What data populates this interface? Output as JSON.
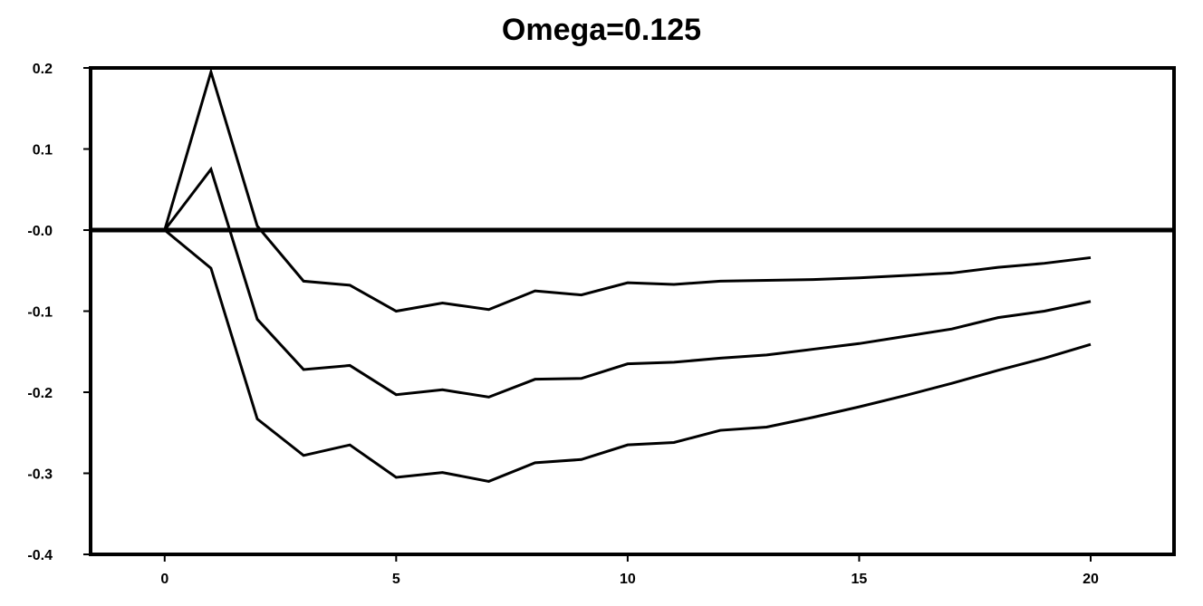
{
  "chart_data": {
    "type": "line",
    "title": "Omega=0.125",
    "xlabel": "",
    "ylabel": "",
    "xlim": [
      -1.6,
      21.8
    ],
    "ylim": [
      -0.4,
      0.2
    ],
    "x_ticks": [
      0,
      5,
      10,
      15,
      20
    ],
    "x_tick_labels": [
      "0",
      "5",
      "10",
      "15",
      "20"
    ],
    "y_ticks": [
      0.2,
      0.1,
      0.0,
      -0.1,
      -0.2,
      -0.3,
      -0.4
    ],
    "y_tick_labels": [
      "0.2",
      "0.1",
      "-0.0",
      "-0.1",
      "-0.2",
      "-0.3",
      "-0.4"
    ],
    "zero_line": true,
    "grid": false,
    "x": [
      0,
      1,
      2,
      3,
      4,
      5,
      6,
      7,
      8,
      9,
      10,
      11,
      12,
      13,
      14,
      15,
      16,
      17,
      18,
      19,
      20
    ],
    "series": [
      {
        "values": [
          0,
          0.195,
          0.005,
          -0.063,
          -0.068,
          -0.1,
          -0.09,
          -0.098,
          -0.075,
          -0.08,
          -0.065,
          -0.067,
          -0.063,
          -0.062,
          -0.061,
          -0.059,
          -0.056,
          -0.053,
          -0.046,
          -0.041,
          -0.034
        ]
      },
      {
        "values": [
          0,
          0.075,
          -0.11,
          -0.172,
          -0.167,
          -0.203,
          -0.197,
          -0.206,
          -0.184,
          -0.183,
          -0.165,
          -0.163,
          -0.158,
          -0.154,
          -0.147,
          -0.14,
          -0.131,
          -0.122,
          -0.108,
          -0.1,
          -0.088
        ]
      },
      {
        "values": [
          0,
          -0.047,
          -0.233,
          -0.278,
          -0.265,
          -0.305,
          -0.299,
          -0.31,
          -0.287,
          -0.283,
          -0.265,
          -0.262,
          -0.247,
          -0.243,
          -0.231,
          -0.218,
          -0.204,
          -0.189,
          -0.173,
          -0.158,
          -0.141
        ]
      }
    ],
    "colors": {
      "line": "#000000",
      "frame": "#000000",
      "background": "#ffffff"
    }
  }
}
